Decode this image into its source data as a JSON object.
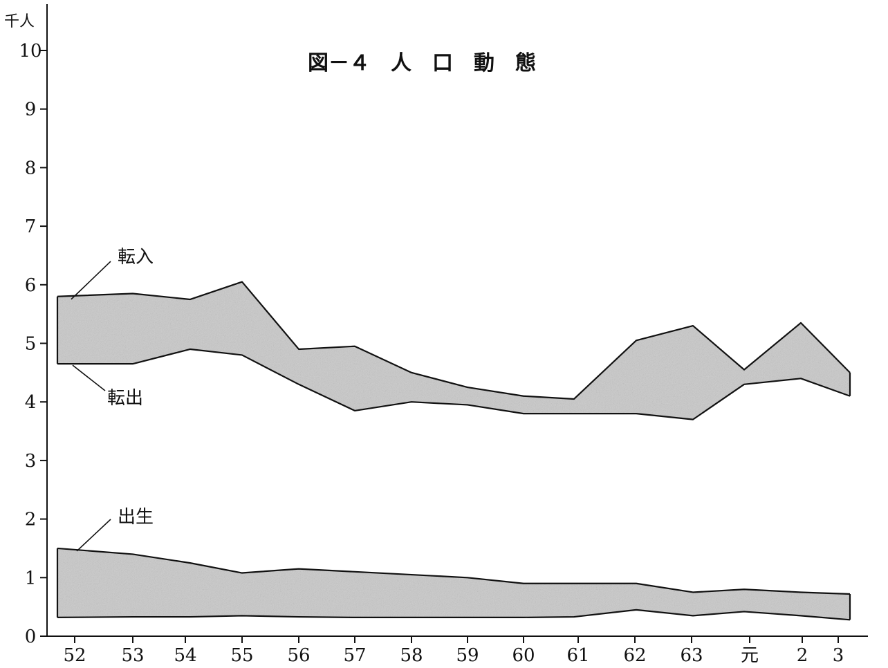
{
  "chart_data": {
    "type": "area",
    "title": "図－４　人　口　動　態",
    "y_unit": "千人",
    "ylim": [
      0,
      10
    ],
    "y_ticks": [
      "0",
      "1",
      "2",
      "3",
      "4",
      "5",
      "6",
      "7",
      "8",
      "9",
      "10"
    ],
    "categories": [
      "52",
      "53",
      "54",
      "55",
      "56",
      "57",
      "58",
      "59",
      "60",
      "61",
      "62",
      "63",
      "元",
      "2",
      "3"
    ],
    "series": [
      {
        "name": "転入",
        "values": [
          5.8,
          5.85,
          5.75,
          6.05,
          4.9,
          4.95,
          4.5,
          4.25,
          4.1,
          4.05,
          5.05,
          5.3,
          4.55,
          5.35,
          4.5
        ]
      },
      {
        "name": "転出",
        "values": [
          4.65,
          4.65,
          4.9,
          4.8,
          4.3,
          3.85,
          4.0,
          3.95,
          3.8,
          3.8,
          3.8,
          3.7,
          4.3,
          4.4,
          4.1
        ]
      },
      {
        "name": "出生",
        "values": [
          1.5,
          1.4,
          1.25,
          1.08,
          1.15,
          1.1,
          1.05,
          1.0,
          0.9,
          0.9,
          0.9,
          0.75,
          0.8,
          0.75,
          0.72
        ]
      },
      {
        "name": "",
        "values": [
          0.32,
          0.33,
          0.33,
          0.35,
          0.33,
          0.32,
          0.32,
          0.32,
          0.32,
          0.33,
          0.45,
          0.35,
          0.42,
          0.35,
          0.28
        ]
      }
    ],
    "annotations": [
      "転入",
      "転出",
      "出生"
    ],
    "grid": false,
    "legend": "none",
    "colors": {
      "fill": "#c9c9c9",
      "line": "#111111"
    }
  }
}
